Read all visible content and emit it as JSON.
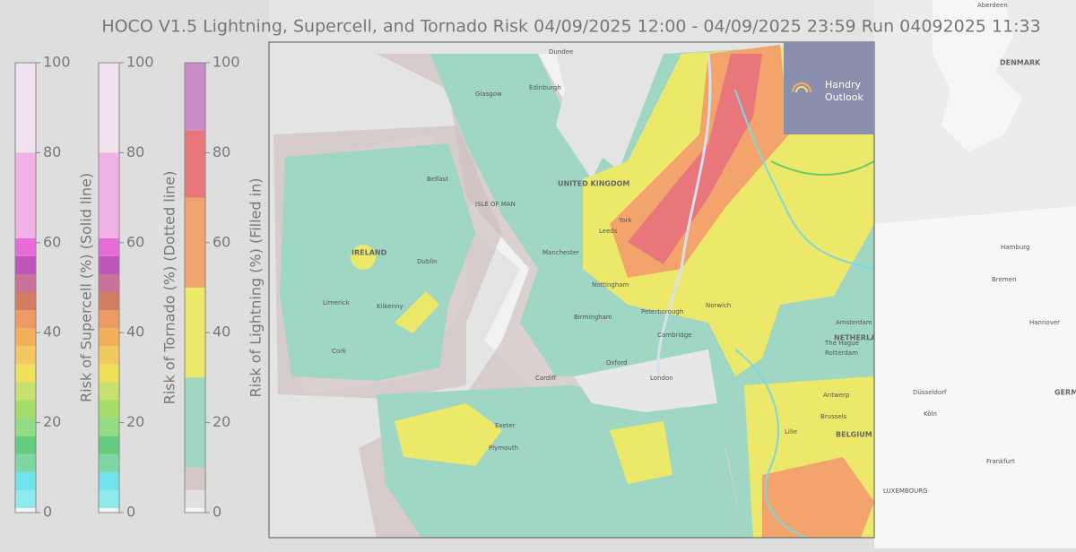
{
  "title": "HOCO V1.5 Lightning, Supercell, and Tornado Risk 04/09/2025 12:00 - 04/09/2025 23:59 Run 04092025 11:33",
  "colorbars": [
    {
      "label": "Risk of Supercell (%) (Solid line)",
      "range": [
        0,
        100
      ],
      "ticks": [
        0,
        20,
        40,
        60,
        80,
        100
      ],
      "bounds": [
        0,
        1,
        5,
        9,
        13,
        17,
        21,
        25,
        29,
        33,
        37,
        41,
        45,
        49,
        53,
        57,
        61,
        80,
        100
      ],
      "colors": [
        "#f4f4f4",
        "#8feaf0",
        "#6fe3ec",
        "#7fd6a2",
        "#66cc80",
        "#93db84",
        "#a5dd6a",
        "#c8e070",
        "#eee05a",
        "#f2c860",
        "#f2b05a",
        "#ef9a64",
        "#d47c60",
        "#c9739a",
        "#c154b8",
        "#e86cd8",
        "#f2b2e6",
        "#f1e2ef"
      ]
    },
    {
      "label": "Risk of Tornado (%) (Dotted line)",
      "range": [
        0,
        100
      ],
      "ticks": [
        0,
        20,
        40,
        60,
        80,
        100
      ],
      "bounds": [
        0,
        1,
        5,
        9,
        13,
        17,
        21,
        25,
        29,
        33,
        37,
        41,
        45,
        49,
        53,
        57,
        61,
        80,
        100
      ],
      "colors": [
        "#f4f4f4",
        "#8feaf0",
        "#6fe3ec",
        "#7fd6a2",
        "#66cc80",
        "#93db84",
        "#a5dd6a",
        "#c8e070",
        "#eee05a",
        "#f2c860",
        "#f2b05a",
        "#ef9a64",
        "#d47c60",
        "#c9739a",
        "#c154b8",
        "#e86cd8",
        "#f2b2e6",
        "#f1e2ef"
      ]
    },
    {
      "label": "Risk of Lightning (%) (Filled in)",
      "range": [
        0,
        100
      ],
      "ticks": [
        0,
        20,
        40,
        60,
        80,
        100
      ],
      "bounds": [
        0,
        1,
        5,
        10,
        30,
        50,
        70,
        85,
        100
      ],
      "colors": [
        "#f4f4f4",
        "#e0e0e0",
        "#d6c8c6",
        "#9fd6c4",
        "#ece86a",
        "#f2a46c",
        "#e8767a",
        "#cc8ccc"
      ]
    }
  ],
  "places": [
    "IRELAND",
    "UNITED KINGDOM",
    "ISLE OF MAN",
    "BELGIUM",
    "NETHERLANDS",
    "DENMARK",
    "GERMANY",
    "LUXEMBOURG",
    "Belfast",
    "Dublin",
    "Glasgow",
    "Edinburgh",
    "Manchester",
    "Leeds",
    "Birmingham",
    "London",
    "Cambridge",
    "Oxford",
    "Cardiff",
    "Plymouth",
    "Exeter",
    "Norwich",
    "Amsterdam",
    "Brussels",
    "Antwerp",
    "Hamburg",
    "Bremen",
    "Hannover",
    "Düsseldorf",
    "Köln",
    "Frankfurt",
    "The Hague",
    "Rotterdam",
    "Lille",
    "Limerick",
    "Kilkenny",
    "Cork",
    "York",
    "Aberdeen",
    "Dundee",
    "Nottingham",
    "Peterborough"
  ],
  "logo": {
    "line1": "Handry",
    "line2": "Outlook"
  }
}
